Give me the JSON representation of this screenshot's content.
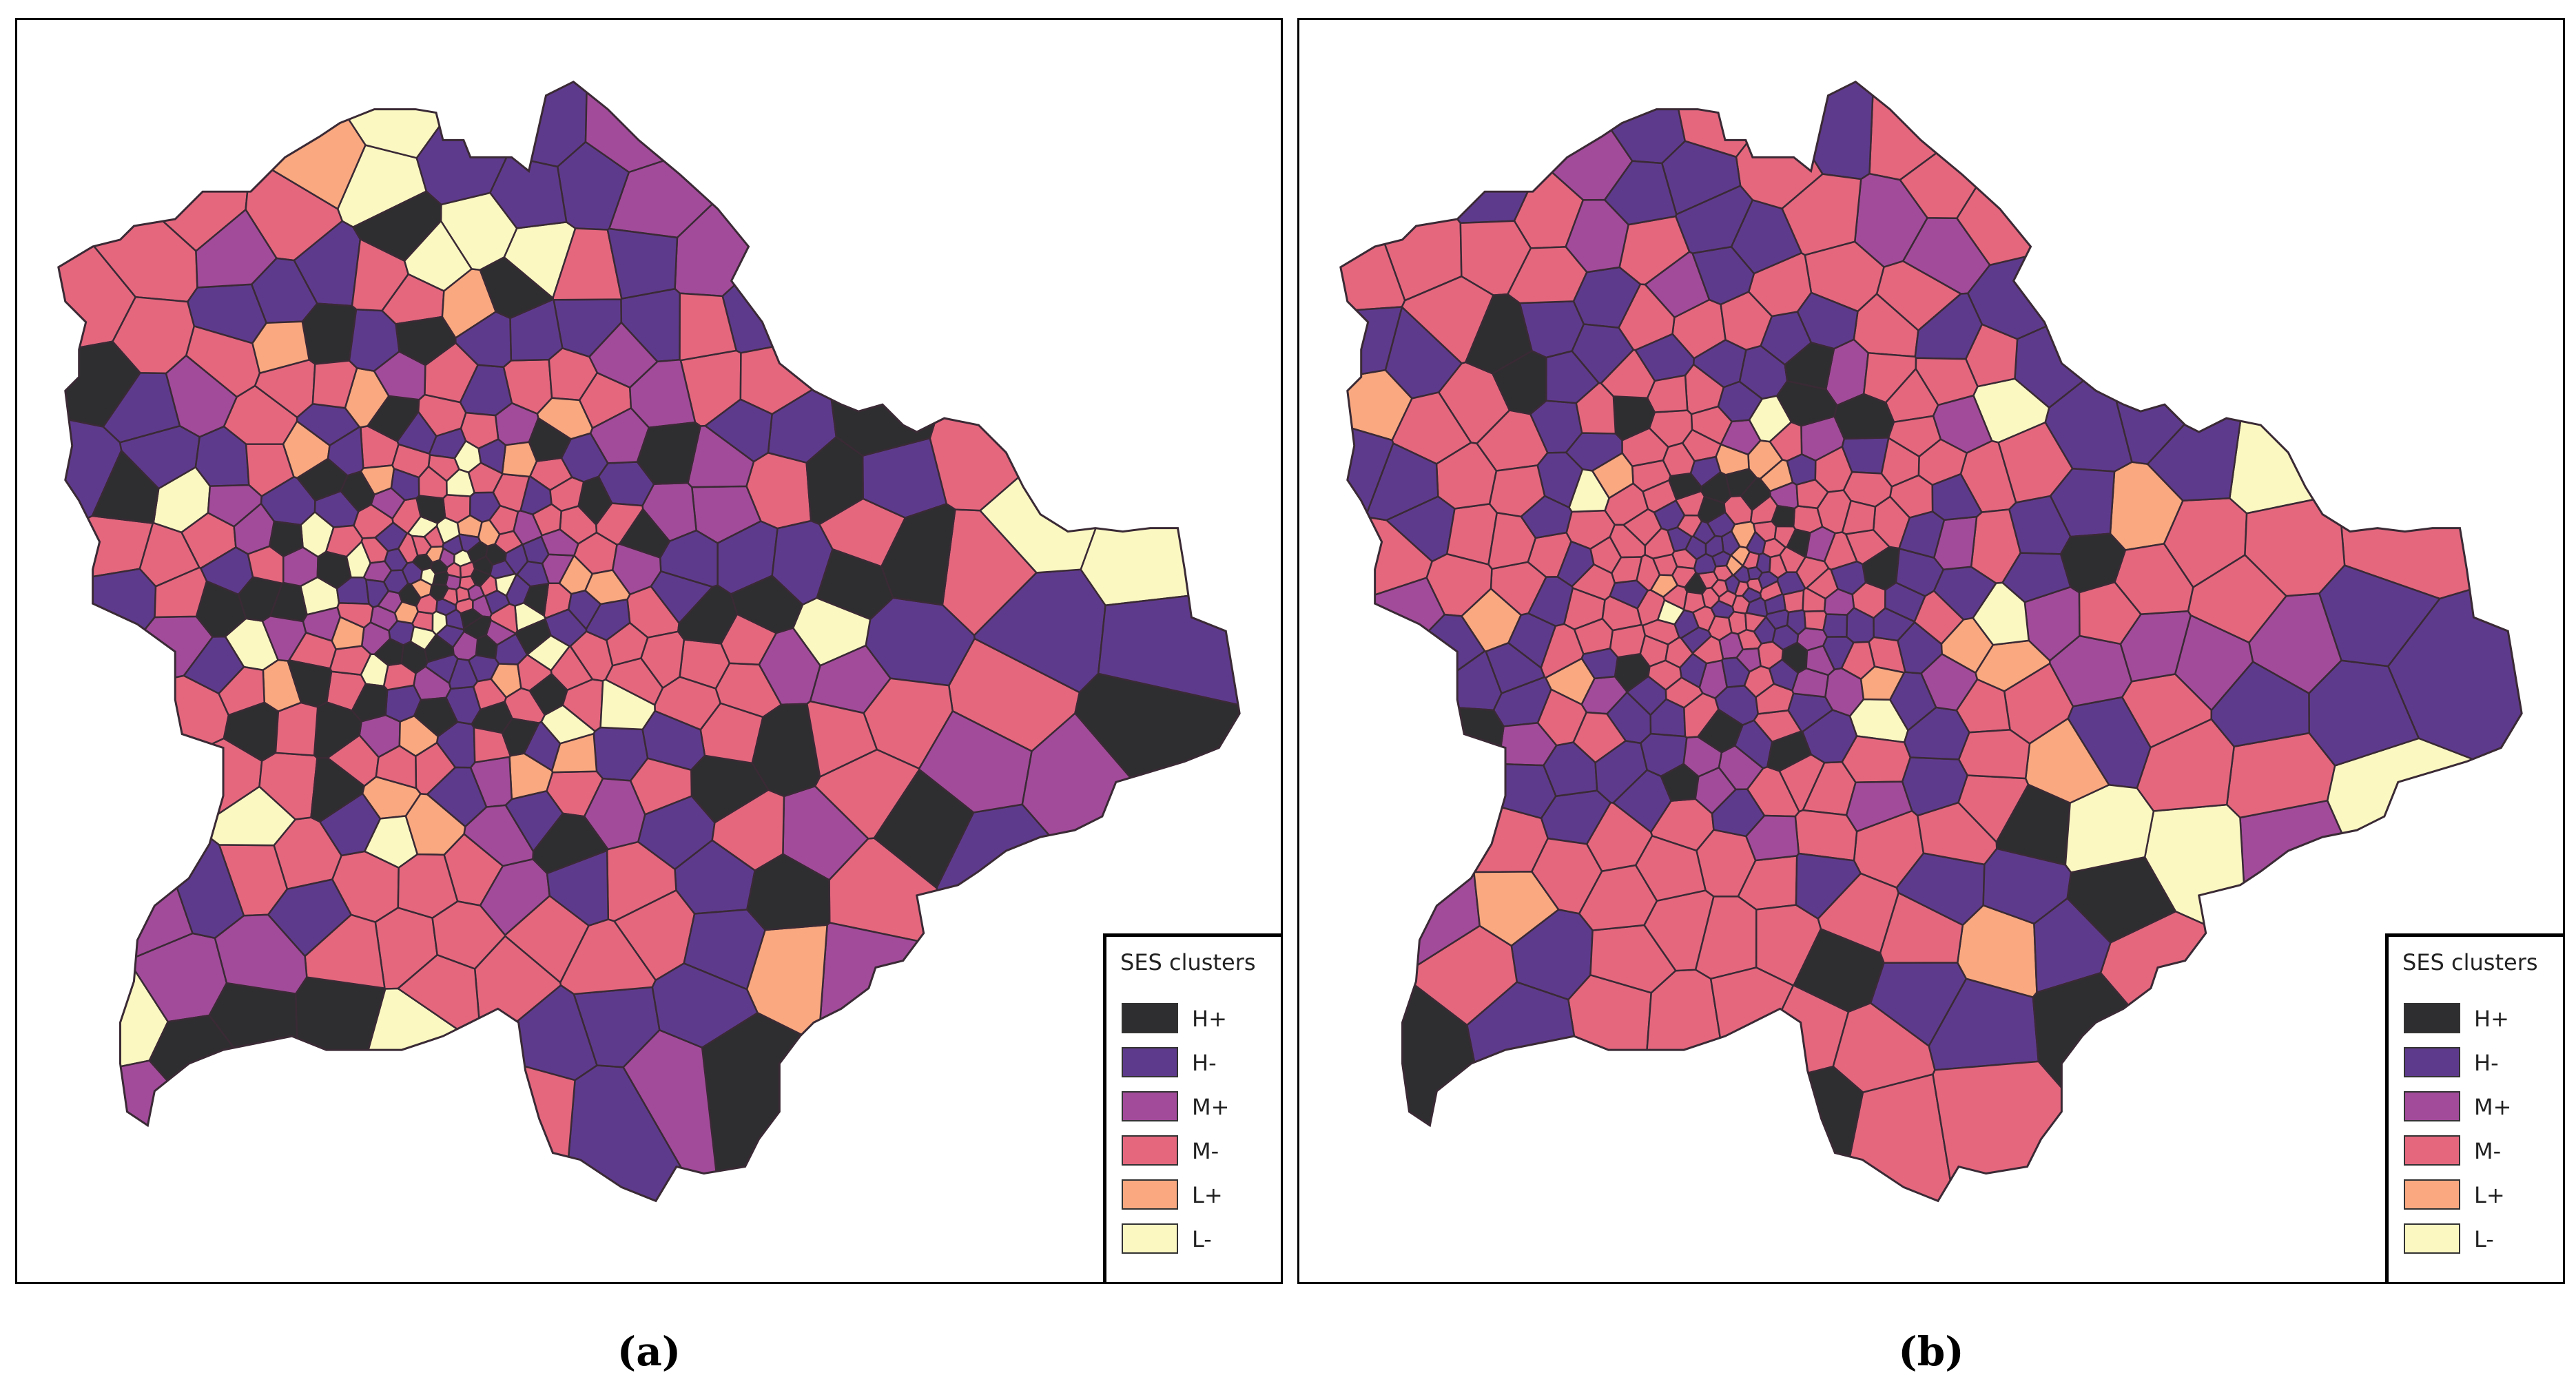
{
  "panels": [
    {
      "caption": "(a)",
      "legend": {
        "title": "SES clusters",
        "items": [
          {
            "label": "H+",
            "color": "#2e2e30"
          },
          {
            "label": "H-",
            "color": "#5e3a8c"
          },
          {
            "label": "M+",
            "color": "#a24b9a"
          },
          {
            "label": "M-",
            "color": "#e4677e"
          },
          {
            "label": "L+",
            "color": "#f9a880"
          },
          {
            "label": "L-",
            "color": "#fcf8c2"
          }
        ]
      },
      "class_weights": [
        0.14,
        0.26,
        0.14,
        0.3,
        0.08,
        0.08
      ]
    },
    {
      "caption": "(b)",
      "legend": {
        "title": "SES clusters",
        "items": [
          {
            "label": "H+",
            "color": "#2e2e30"
          },
          {
            "label": "H-",
            "color": "#5e3a8c"
          },
          {
            "label": "M+",
            "color": "#a24b9a"
          },
          {
            "label": "M-",
            "color": "#e4677e"
          },
          {
            "label": "L+",
            "color": "#f9a880"
          },
          {
            "label": "L-",
            "color": "#fcf8c2"
          }
        ]
      },
      "class_weights": [
        0.08,
        0.3,
        0.1,
        0.44,
        0.05,
        0.03
      ]
    }
  ]
}
